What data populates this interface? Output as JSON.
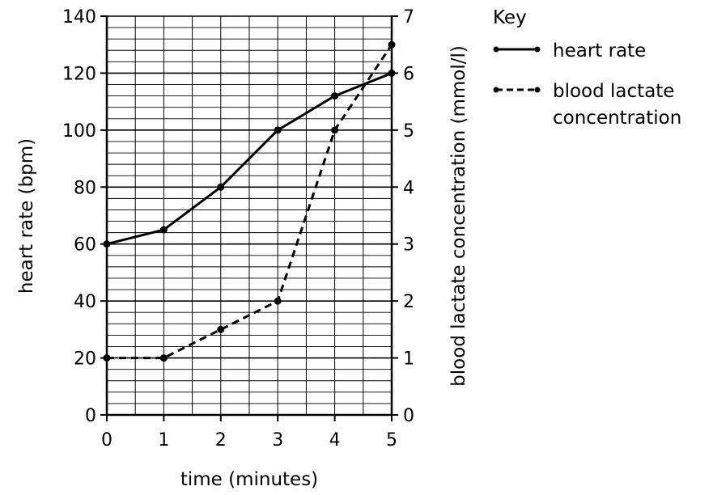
{
  "chart_data": {
    "type": "line",
    "x": [
      0,
      1,
      2,
      3,
      4,
      5
    ],
    "xlabel": "time (minutes)",
    "ylabel": "heart rate (bpm)",
    "y2label": "blood lactate concentration (mmol/l)",
    "xlim": [
      0,
      5
    ],
    "ylim": [
      0,
      140
    ],
    "y2lim": [
      0,
      7
    ],
    "x_ticks": [
      "0",
      "1",
      "2",
      "3",
      "4",
      "5"
    ],
    "y_ticks": [
      "0",
      "20",
      "40",
      "60",
      "80",
      "100",
      "120",
      "140"
    ],
    "y2_ticks": [
      "0",
      "1",
      "2",
      "3",
      "4",
      "5",
      "6",
      "7"
    ],
    "grid": true,
    "legend": {
      "title": "Key",
      "position": "right",
      "entries": [
        "heart rate",
        "blood lactate",
        "concentration"
      ]
    },
    "series": [
      {
        "name": "heart rate",
        "axis": "left",
        "style": "solid",
        "values": [
          60,
          65,
          80,
          100,
          112,
          120
        ]
      },
      {
        "name": "blood lactate concentration",
        "axis": "right",
        "style": "dashed",
        "values": [
          1.0,
          1.0,
          1.5,
          2.0,
          5.0,
          6.5
        ]
      }
    ],
    "colors": {
      "line": "#000000",
      "grid": "#000000"
    }
  }
}
